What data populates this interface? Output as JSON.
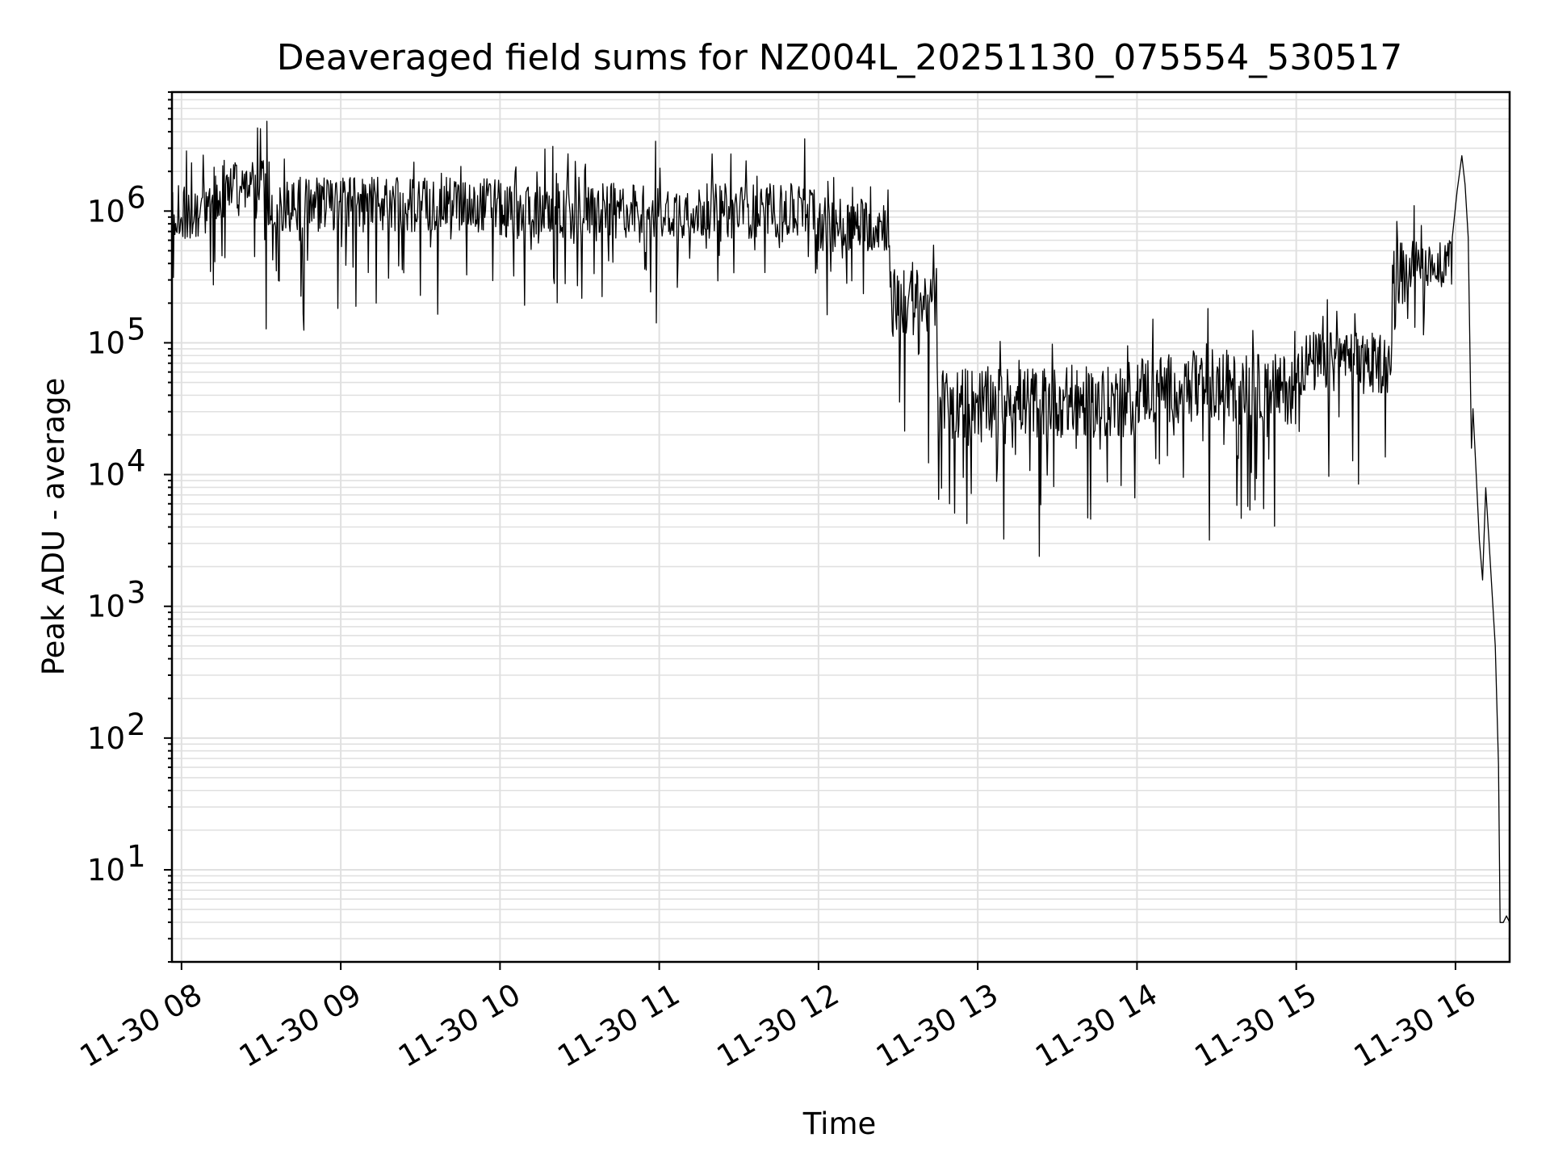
{
  "chart_data": {
    "type": "line",
    "title": "Deaveraged field sums for NZ004L_20251130_075554_530517",
    "xlabel": "Time",
    "ylabel": "Peak ADU - average",
    "yscale": "log",
    "ylim": [
      2,
      8000000
    ],
    "xlim_hours": [
      7.94,
      16.34
    ],
    "grid": true,
    "line_color": "#000000",
    "grid_color": "#e0e0e0",
    "x_ticks": [
      {
        "hour": 8,
        "label": "11-30 08"
      },
      {
        "hour": 9,
        "label": "11-30 09"
      },
      {
        "hour": 10,
        "label": "11-30 10"
      },
      {
        "hour": 11,
        "label": "11-30 11"
      },
      {
        "hour": 12,
        "label": "11-30 12"
      },
      {
        "hour": 13,
        "label": "11-30 13"
      },
      {
        "hour": 14,
        "label": "11-30 14"
      },
      {
        "hour": 15,
        "label": "11-30 15"
      },
      {
        "hour": 16,
        "label": "11-30 16"
      }
    ],
    "y_ticks": [
      {
        "exp": 1,
        "label": "10",
        "sup": "1"
      },
      {
        "exp": 2,
        "label": "10",
        "sup": "2"
      },
      {
        "exp": 3,
        "label": "10",
        "sup": "3"
      },
      {
        "exp": 4,
        "label": "10",
        "sup": "4"
      },
      {
        "exp": 5,
        "label": "10",
        "sup": "5"
      },
      {
        "exp": 6,
        "label": "10",
        "sup": "6"
      }
    ],
    "series": [
      {
        "name": "field sums",
        "envelope_note": "approximate typical level (log10 median, log10 spread) per time segment",
        "segments": [
          {
            "start": 7.94,
            "end": 8.2,
            "center": 6.0,
            "spread": 0.35
          },
          {
            "start": 8.2,
            "end": 8.55,
            "center": 6.15,
            "spread": 0.4
          },
          {
            "start": 8.55,
            "end": 10.0,
            "center": 6.05,
            "spread": 0.35
          },
          {
            "start": 10.0,
            "end": 12.0,
            "center": 6.0,
            "spread": 0.35
          },
          {
            "start": 12.0,
            "end": 12.45,
            "center": 5.9,
            "spread": 0.35
          },
          {
            "start": 12.45,
            "end": 12.75,
            "center": 5.3,
            "spread": 0.45
          },
          {
            "start": 12.75,
            "end": 14.0,
            "center": 4.55,
            "spread": 0.45
          },
          {
            "start": 14.0,
            "end": 15.0,
            "center": 4.65,
            "spread": 0.45
          },
          {
            "start": 15.0,
            "end": 15.6,
            "center": 4.85,
            "spread": 0.4
          },
          {
            "start": 15.6,
            "end": 15.98,
            "center": 5.6,
            "spread": 0.3
          }
        ],
        "tail": [
          [
            15.98,
            5.8
          ],
          [
            16.01,
            6.15
          ],
          [
            16.04,
            6.42
          ],
          [
            16.06,
            6.2
          ],
          [
            16.08,
            5.8
          ],
          [
            16.09,
            5.0
          ],
          [
            16.1,
            4.2
          ],
          [
            16.11,
            4.5
          ],
          [
            16.13,
            4.0
          ],
          [
            16.15,
            3.5
          ],
          [
            16.17,
            3.2
          ],
          [
            16.19,
            3.9
          ],
          [
            16.21,
            3.5
          ],
          [
            16.23,
            3.1
          ],
          [
            16.25,
            2.7
          ],
          [
            16.27,
            1.8
          ],
          [
            16.28,
            0.6
          ],
          [
            16.3,
            0.6
          ],
          [
            16.32,
            0.65
          ],
          [
            16.34,
            0.6
          ]
        ]
      }
    ]
  }
}
